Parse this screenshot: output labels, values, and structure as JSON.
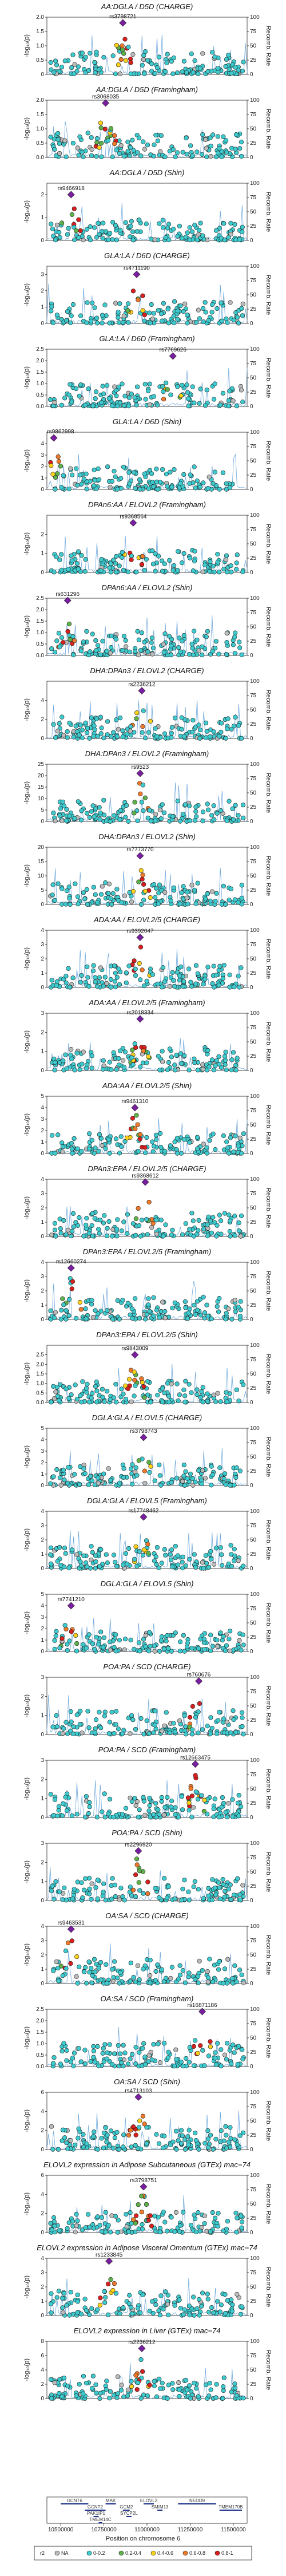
{
  "figure": {
    "x_axis_label": "Position on chromosome 6",
    "y_left_label": "-log₁₀(p)",
    "y_right_label": "Recomb. Rate",
    "legend_label": "r2",
    "legend": [
      {
        "label": "NA",
        "color": "#bbbbbb"
      },
      {
        "label": "0-0.2",
        "color": "#3ecbcf"
      },
      {
        "label": "0.2-0.4",
        "color": "#5fb24a"
      },
      {
        "label": "0.4-0.6",
        "color": "#ffd21a"
      },
      {
        "label": "0.6-0.8",
        "color": "#f07a2a"
      },
      {
        "label": "0.8-1",
        "color": "#d9201f"
      }
    ],
    "colors": {
      "top_snp": "#7a1fa0",
      "recomb_line": "#6fa8dc",
      "frame": "#222222"
    },
    "x_ticks": [
      "10500000",
      "10750000",
      "11000000",
      "11250000",
      "11500000"
    ],
    "genes": [
      "GCNT6",
      "GCNT2",
      "PAK1IP1",
      "TMEM14C",
      "MAK",
      "GCM2",
      "SYCP2L",
      "ELOVL2",
      "SMIM13",
      "NEDD9",
      "TMEM170B"
    ]
  },
  "chart_data": [
    {
      "type": "scatter",
      "title": "AA:DGLA / D5D (CHARGE)",
      "snp": "rs3798721",
      "peak": 1.8,
      "ylim": [
        0,
        2
      ],
      "yticks": [
        "0",
        "0.5",
        "1.0",
        "1.5",
        "2.0"
      ],
      "rticks": [
        "0",
        "25",
        "50",
        "75",
        "100"
      ],
      "top_x": 10860000
    },
    {
      "type": "scatter",
      "title": "AA:DGLA / D5D (Framingham)",
      "snp": "rs3068035",
      "peak": 1.9,
      "ylim": [
        0,
        2
      ],
      "yticks": [
        "0.0",
        "0.5",
        "1.0",
        "1.5",
        "2.0"
      ],
      "rticks": [
        "0",
        "25",
        "50",
        "75",
        "100"
      ],
      "top_x": 10760000
    },
    {
      "type": "scatter",
      "title": "AA:DGLA / D5D (Shin)",
      "snp": "rs9466918",
      "peak": 2.0,
      "ylim": [
        0,
        2.5
      ],
      "yticks": [
        "0",
        "1",
        "2"
      ],
      "rticks": [
        "0",
        "25",
        "50",
        "75",
        "100"
      ],
      "top_x": 10560000
    },
    {
      "type": "scatter",
      "title": "GLA:LA / D6D (CHARGE)",
      "snp": "rs4711190",
      "peak": 3.0,
      "ylim": [
        0,
        3.5
      ],
      "yticks": [
        "0",
        "1",
        "2",
        "3"
      ],
      "rticks": [
        "0",
        "25",
        "50",
        "75",
        "100"
      ],
      "top_x": 10940000
    },
    {
      "type": "scatter",
      "title": "GLA:LA / D6D (Framingham)",
      "snp": "rs7769626",
      "peak": 2.2,
      "ylim": [
        0,
        2.5
      ],
      "yticks": [
        "0.0",
        "0.5",
        "1.0",
        "1.5",
        "2.0",
        "2.5"
      ],
      "rticks": [
        "0",
        "25",
        "50",
        "75",
        "100"
      ],
      "top_x": 11150000
    },
    {
      "type": "scatter",
      "title": "GLA:LA / D6D (Shin)",
      "snp": "rs9862998",
      "peak": 4.5,
      "ylim": [
        0,
        5
      ],
      "yticks": [
        "0",
        "1",
        "2",
        "3",
        "4"
      ],
      "rticks": [
        "0",
        "25",
        "50",
        "75",
        "100"
      ],
      "top_x": 10460000
    },
    {
      "type": "scatter",
      "title": "DPAn6:AA / ELOVL2 (Framingham)",
      "snp": "rs9368564",
      "peak": 2.6,
      "ylim": [
        0,
        3
      ],
      "yticks": [
        "0",
        "1",
        "2"
      ],
      "rticks": [
        "0",
        "25",
        "50",
        "75",
        "100"
      ],
      "top_x": 10920000
    },
    {
      "type": "scatter",
      "title": "DPAn6:AA / ELOVL2 (Shin)",
      "snp": "rs631296",
      "peak": 2.4,
      "ylim": [
        0,
        2.5
      ],
      "yticks": [
        "0.0",
        "0.5",
        "1.0",
        "1.5",
        "2.0",
        "2.5"
      ],
      "rticks": [
        "0",
        "25",
        "50",
        "75",
        "100"
      ],
      "top_x": 10540000
    },
    {
      "type": "scatter",
      "title": "DHA:DPAn3 / ELOVL2 (CHARGE)",
      "snp": "rs2236212",
      "peak": 5.0,
      "ylim": [
        0,
        6
      ],
      "yticks": [
        "0",
        "2",
        "4"
      ],
      "rticks": [
        "0",
        "25",
        "50",
        "75",
        "100"
      ],
      "top_x": 10970000
    },
    {
      "type": "scatter",
      "title": "DHA:DPAn3 / ELOVL2 (Framingham)",
      "snp": "rs9523",
      "peak": 21,
      "ylim": [
        0,
        25
      ],
      "yticks": [
        "0",
        "5",
        "10",
        "15",
        "20",
        "25"
      ],
      "rticks": [
        "0",
        "25",
        "50",
        "75",
        "100"
      ],
      "top_x": 10960000
    },
    {
      "type": "scatter",
      "title": "DHA:DPAn3 / ELOVL2 (Shin)",
      "snp": "rs7773770",
      "peak": 17,
      "ylim": [
        0,
        20
      ],
      "yticks": [
        "0",
        "5",
        "10",
        "15",
        "20"
      ],
      "rticks": [
        "0",
        "25",
        "50",
        "75",
        "100"
      ],
      "top_x": 10960000
    },
    {
      "type": "scatter",
      "title": "ADA:AA / ELOVL2/5 (CHARGE)",
      "snp": "rs9392047",
      "peak": 3.5,
      "ylim": [
        0,
        4
      ],
      "yticks": [
        "0",
        "1",
        "2",
        "3",
        "4"
      ],
      "rticks": [
        "0",
        "25",
        "50",
        "75",
        "100"
      ],
      "top_x": 10960000
    },
    {
      "type": "scatter",
      "title": "ADA:AA / ELOVL2/5 (Framingham)",
      "snp": "rs2018334",
      "peak": 2.7,
      "ylim": [
        0,
        3
      ],
      "yticks": [
        "0",
        "1",
        "2",
        "3"
      ],
      "rticks": [
        "0",
        "25",
        "50",
        "75",
        "100"
      ],
      "top_x": 10960000
    },
    {
      "type": "scatter",
      "title": "ADA:AA / ELOVL2/5 (Shin)",
      "snp": "rs9461310",
      "peak": 4.0,
      "ylim": [
        0,
        5
      ],
      "yticks": [
        "0",
        "1",
        "2",
        "3",
        "4",
        "5"
      ],
      "rticks": [
        "0",
        "25",
        "50",
        "75",
        "100"
      ],
      "top_x": 10930000
    },
    {
      "type": "scatter",
      "title": "DPAn3:EPA / ELOVL2/5 (CHARGE)",
      "snp": "rs9368612",
      "peak": 3.8,
      "ylim": [
        0,
        4
      ],
      "yticks": [
        "0",
        "1",
        "2",
        "3",
        "4"
      ],
      "rticks": [
        "0",
        "25",
        "50",
        "75",
        "100"
      ],
      "top_x": 10990000
    },
    {
      "type": "scatter",
      "title": "DPAn3:EPA / ELOVL2/5 (Framingham)",
      "snp": "rs12660274",
      "peak": 3.6,
      "ylim": [
        0,
        4
      ],
      "yticks": [
        "0",
        "1",
        "2",
        "3",
        "4"
      ],
      "rticks": [
        "0",
        "25",
        "50",
        "75",
        "100"
      ],
      "top_x": 10560000
    },
    {
      "type": "scatter",
      "title": "DPAn3:EPA / ELOVL2/5 (Shin)",
      "snp": "rs9843009",
      "peak": 2.5,
      "ylim": [
        0,
        3
      ],
      "yticks": [
        "0.0",
        "0.5",
        "1.0",
        "1.5",
        "2.0",
        "2.5"
      ],
      "rticks": [
        "0",
        "25",
        "50",
        "75",
        "100"
      ],
      "top_x": 10930000
    },
    {
      "type": "scatter",
      "title": "DGLA:GLA / ELOVL5 (CHARGE)",
      "snp": "rs3798743",
      "peak": 4.2,
      "ylim": [
        0,
        5
      ],
      "yticks": [
        "0",
        "1",
        "2",
        "3",
        "4",
        "5"
      ],
      "rticks": [
        "0",
        "25",
        "50",
        "75",
        "100"
      ],
      "top_x": 10980000
    },
    {
      "type": "scatter",
      "title": "DGLA:GLA / ELOVL5 (Framingham)",
      "snp": "rs17748462",
      "peak": 3.6,
      "ylim": [
        0,
        4
      ],
      "yticks": [
        "0",
        "1",
        "2",
        "3",
        "4"
      ],
      "rticks": [
        "0",
        "25",
        "50",
        "75",
        "100"
      ],
      "top_x": 10980000
    },
    {
      "type": "scatter",
      "title": "DGLA:GLA / ELOVL5 (Shin)",
      "snp": "rs7741210",
      "peak": 4.0,
      "ylim": [
        0,
        5
      ],
      "yticks": [
        "0",
        "1",
        "2",
        "3",
        "4",
        "5"
      ],
      "rticks": [
        "0",
        "25",
        "50",
        "75",
        "100"
      ],
      "top_x": 10560000
    },
    {
      "type": "scatter",
      "title": "POA:PA / SCD (CHARGE)",
      "snp": "rs760676",
      "peak": 2.8,
      "ylim": [
        0,
        3
      ],
      "yticks": [
        "0",
        "1",
        "2",
        "3"
      ],
      "rticks": [
        "0",
        "25",
        "50",
        "75",
        "100"
      ],
      "top_x": 11300000
    },
    {
      "type": "scatter",
      "title": "POA:PA / SCD (Framingham)",
      "snp": "rs12663475",
      "peak": 2.8,
      "ylim": [
        0,
        3
      ],
      "yticks": [
        "0",
        "1",
        "2",
        "3"
      ],
      "rticks": [
        "0",
        "25",
        "50",
        "75",
        "100"
      ],
      "top_x": 11280000
    },
    {
      "type": "scatter",
      "title": "POA:PA / SCD (Shin)",
      "snp": "rs2296920",
      "peak": 2.6,
      "ylim": [
        0,
        3
      ],
      "yticks": [
        "0",
        "1",
        "2",
        "3"
      ],
      "rticks": [
        "0",
        "25",
        "50",
        "75",
        "100"
      ],
      "top_x": 10950000
    },
    {
      "type": "scatter",
      "title": "OA:SA / SCD (CHARGE)",
      "snp": "rs9463531",
      "peak": 3.8,
      "ylim": [
        0,
        4
      ],
      "yticks": [
        "0",
        "1",
        "2",
        "3",
        "4"
      ],
      "rticks": [
        "0",
        "25",
        "50",
        "75",
        "100"
      ],
      "top_x": 10560000
    },
    {
      "type": "scatter",
      "title": "OA:SA / SCD (Framingham)",
      "snp": "rs16871186",
      "peak": 2.4,
      "ylim": [
        0,
        2.5
      ],
      "yticks": [
        "0.0",
        "0.5",
        "1.0",
        "1.5",
        "2.0",
        "2.5"
      ],
      "rticks": [
        "0",
        "25",
        "50",
        "75",
        "100"
      ],
      "top_x": 11320000
    },
    {
      "type": "scatter",
      "title": "OA:SA / SCD (Shin)",
      "snp": "rs4713103",
      "peak": 5.5,
      "ylim": [
        0,
        6
      ],
      "yticks": [
        "0",
        "2",
        "4",
        "6"
      ],
      "rticks": [
        "0",
        "25",
        "50",
        "75",
        "100"
      ],
      "top_x": 10950000
    },
    {
      "type": "scatter",
      "title": "ELOVL2 expression in Adipose Subcutaneous (GTEx) mac=74",
      "snp": "rs3798751",
      "peak": 4.8,
      "ylim": [
        0,
        6
      ],
      "yticks": [
        "0",
        "2",
        "4",
        "6"
      ],
      "rticks": [
        "0",
        "25",
        "50",
        "75",
        "100"
      ],
      "top_x": 10980000
    },
    {
      "type": "scatter",
      "title": "ELOVL2 expression in Adipose Visceral Omentum (GTEx) mac=74",
      "snp": "rs1233845",
      "peak": 3.8,
      "ylim": [
        0,
        4
      ],
      "yticks": [
        "0",
        "1",
        "2",
        "3",
        "4"
      ],
      "rticks": [
        "0",
        "25",
        "50",
        "75",
        "100"
      ],
      "top_x": 10780000
    },
    {
      "type": "scatter",
      "title": "ELOVL2 expression in Liver (GTEx) mac=74",
      "snp": "rs2236212",
      "peak": 7.0,
      "ylim": [
        0,
        8
      ],
      "yticks": [
        "0",
        "2",
        "4",
        "6",
        "8"
      ],
      "rticks": [
        "0",
        "25",
        "50",
        "75",
        "100"
      ],
      "top_x": 10970000
    }
  ]
}
